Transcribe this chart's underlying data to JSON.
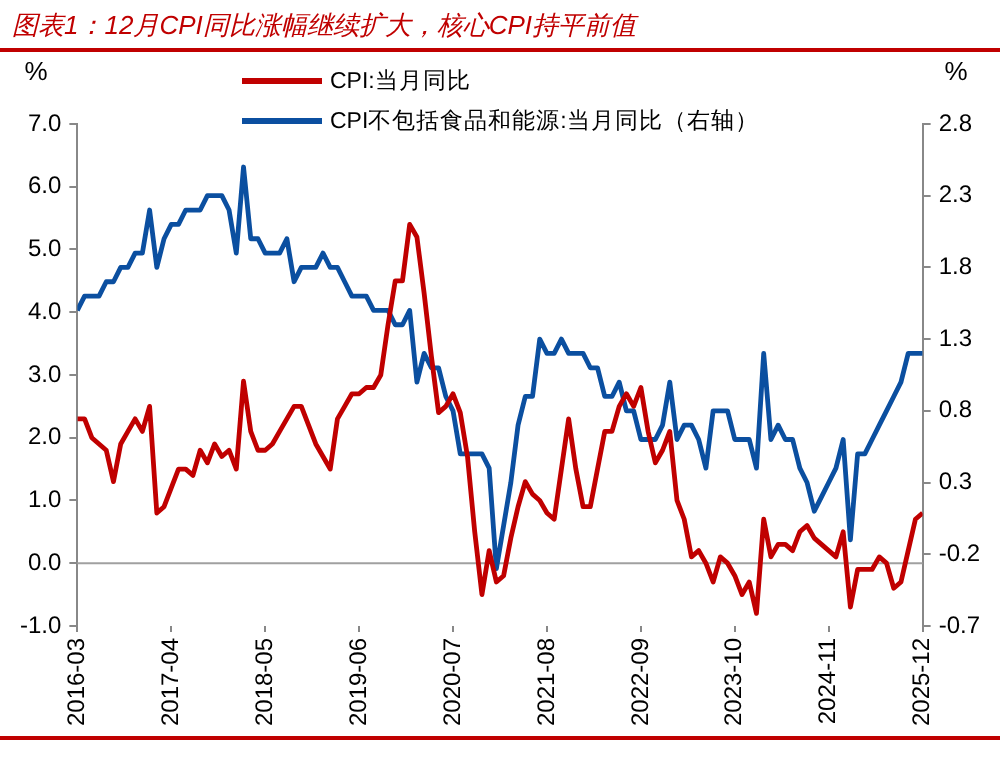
{
  "chart_data": {
    "type": "line",
    "title": "图表1：12月CPI同比涨幅继续扩大，核心CPI持平前值",
    "ylabel": "%",
    "y2label": "%",
    "x": [
      "2016-03",
      "2016-04",
      "2016-05",
      "2016-06",
      "2016-07",
      "2016-08",
      "2016-09",
      "2016-10",
      "2016-11",
      "2016-12",
      "2017-01",
      "2017-02",
      "2017-03",
      "2017-04",
      "2017-05",
      "2017-06",
      "2017-07",
      "2017-08",
      "2017-09",
      "2017-10",
      "2017-11",
      "2017-12",
      "2018-01",
      "2018-02",
      "2018-03",
      "2018-04",
      "2018-05",
      "2018-06",
      "2018-07",
      "2018-08",
      "2018-09",
      "2018-10",
      "2018-11",
      "2018-12",
      "2019-01",
      "2019-02",
      "2019-03",
      "2019-04",
      "2019-05",
      "2019-06",
      "2019-07",
      "2019-08",
      "2019-09",
      "2019-10",
      "2019-11",
      "2019-12",
      "2020-01",
      "2020-02",
      "2020-03",
      "2020-04",
      "2020-05",
      "2020-06",
      "2020-07",
      "2020-08",
      "2020-09",
      "2020-10",
      "2020-11",
      "2020-12",
      "2021-01",
      "2021-02",
      "2021-03",
      "2021-04",
      "2021-05",
      "2021-06",
      "2021-07",
      "2021-08",
      "2021-09",
      "2021-10",
      "2021-11",
      "2021-12",
      "2022-01",
      "2022-02",
      "2022-03",
      "2022-04",
      "2022-05",
      "2022-06",
      "2022-07",
      "2022-08",
      "2022-09",
      "2022-10",
      "2022-11",
      "2022-12",
      "2023-01",
      "2023-02",
      "2023-03",
      "2023-04",
      "2023-05",
      "2023-06",
      "2023-07",
      "2023-08",
      "2023-09",
      "2023-10",
      "2023-11",
      "2023-12",
      "2024-01",
      "2024-02",
      "2024-03",
      "2024-04",
      "2024-05",
      "2024-06",
      "2024-07",
      "2024-08",
      "2024-09",
      "2024-10",
      "2024-11",
      "2024-12",
      "2025-01",
      "2025-02",
      "2025-03",
      "2025-04",
      "2025-05",
      "2025-06",
      "2025-07",
      "2025-08",
      "2025-09",
      "2025-10",
      "2025-11",
      "2025-12"
    ],
    "series": [
      {
        "name": "CPI:当月同比",
        "color": "#c00000",
        "values": [
          2.3,
          2.3,
          2.0,
          1.9,
          1.8,
          1.3,
          1.9,
          2.1,
          2.3,
          2.1,
          2.5,
          0.8,
          0.9,
          1.2,
          1.5,
          1.5,
          1.4,
          1.8,
          1.6,
          1.9,
          1.7,
          1.8,
          1.5,
          2.9,
          2.1,
          1.8,
          1.8,
          1.9,
          2.1,
          2.3,
          2.5,
          2.5,
          2.2,
          1.9,
          1.7,
          1.5,
          2.3,
          2.5,
          2.7,
          2.7,
          2.8,
          2.8,
          3.0,
          3.8,
          4.5,
          4.5,
          5.4,
          5.2,
          4.3,
          3.3,
          2.4,
          2.5,
          2.7,
          2.4,
          1.7,
          0.5,
          -0.5,
          0.2,
          -0.3,
          -0.2,
          0.4,
          0.9,
          1.3,
          1.1,
          1.0,
          0.8,
          0.7,
          1.5,
          2.3,
          1.5,
          0.9,
          0.9,
          1.5,
          2.1,
          2.1,
          2.5,
          2.7,
          2.5,
          2.8,
          2.1,
          1.6,
          1.8,
          2.1,
          1.0,
          0.7,
          0.1,
          0.2,
          0.0,
          -0.3,
          0.1,
          0.0,
          -0.2,
          -0.5,
          -0.3,
          -0.8,
          0.7,
          0.1,
          0.3,
          0.3,
          0.2,
          0.5,
          0.6,
          0.4,
          0.3,
          0.2,
          0.1,
          0.5,
          -0.7,
          -0.1,
          -0.1,
          -0.1,
          0.1,
          0.0,
          -0.4,
          -0.3,
          0.2,
          0.7,
          0.8
        ]
      },
      {
        "name": "CPI不包括食品和能源:当月同比（右轴）",
        "color": "#0b4fa0",
        "axis": "y2",
        "values": [
          1.5,
          1.6,
          1.6,
          1.6,
          1.7,
          1.7,
          1.8,
          1.8,
          1.9,
          1.9,
          2.2,
          1.8,
          2.0,
          2.1,
          2.1,
          2.2,
          2.2,
          2.2,
          2.3,
          2.3,
          2.3,
          2.2,
          1.9,
          2.5,
          2.0,
          2.0,
          1.9,
          1.9,
          1.9,
          2.0,
          1.7,
          1.8,
          1.8,
          1.8,
          1.9,
          1.8,
          1.8,
          1.7,
          1.6,
          1.6,
          1.6,
          1.5,
          1.5,
          1.5,
          1.4,
          1.4,
          1.5,
          1.0,
          1.2,
          1.1,
          1.1,
          0.9,
          0.8,
          0.5,
          0.5,
          0.5,
          0.5,
          0.4,
          -0.3,
          0.0,
          0.3,
          0.7,
          0.9,
          0.9,
          1.3,
          1.2,
          1.2,
          1.3,
          1.2,
          1.2,
          1.2,
          1.1,
          1.1,
          0.9,
          0.9,
          1.0,
          0.8,
          0.8,
          0.6,
          0.6,
          0.6,
          0.7,
          1.0,
          0.6,
          0.7,
          0.7,
          0.6,
          0.4,
          0.8,
          0.8,
          0.8,
          0.6,
          0.6,
          0.6,
          0.4,
          1.2,
          0.6,
          0.7,
          0.6,
          0.6,
          0.4,
          0.3,
          0.1,
          0.2,
          0.3,
          0.4,
          0.6,
          -0.1,
          0.5,
          0.5,
          0.6,
          0.7,
          0.8,
          0.9,
          1.0,
          1.2,
          1.2,
          1.2
        ]
      }
    ],
    "xlim": [
      "2016-03",
      "2025-12"
    ],
    "xticks": [
      "2016-03",
      "2017-04",
      "2018-05",
      "2019-06",
      "2020-07",
      "2021-08",
      "2022-09",
      "2023-10",
      "2024-11",
      "2025-12"
    ],
    "ylim": [
      -1,
      7
    ],
    "yticks": [
      {
        "value": -1,
        "label": "-1.0"
      },
      {
        "value": 0,
        "label": "0.0"
      },
      {
        "value": 1,
        "label": "1.0"
      },
      {
        "value": 2,
        "label": "2.0"
      },
      {
        "value": 3,
        "label": "3.0"
      },
      {
        "value": 4,
        "label": "4.0"
      },
      {
        "value": 5,
        "label": "5.0"
      },
      {
        "value": 6,
        "label": "6.0"
      },
      {
        "value": 7,
        "label": "7.0"
      }
    ],
    "y2lim": [
      -0.7,
      2.8
    ],
    "y2ticks": [
      -0.7,
      -0.2,
      0.3,
      0.8,
      1.3,
      1.8,
      2.3,
      2.8
    ],
    "ref_lines": [
      {
        "axis": "y",
        "value": 0,
        "color": "#a0a0a0"
      }
    ],
    "grid": false,
    "legend": "top",
    "line_style": "solid"
  }
}
